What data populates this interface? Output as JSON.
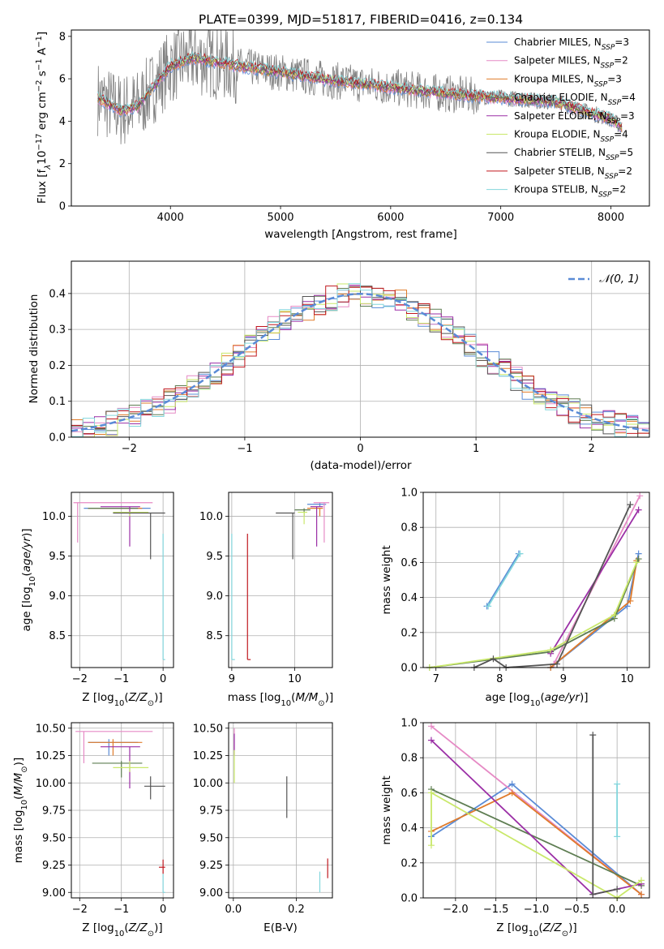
{
  "colors": {
    "chabrier_miles": "#5a8bd6",
    "salpeter_miles": "#e68ac5",
    "kroupa_miles": "#e07b2a",
    "chabrier_elodie": "#5e7d52",
    "salpeter_elodie": "#9b2fa6",
    "kroupa_elodie": "#c9e86a",
    "chabrier_stelib": "#555555",
    "salpeter_stelib": "#c0191f",
    "kroupa_stelib": "#82d6dc",
    "data": "#808080",
    "gauss": "#5a8bd6"
  },
  "chart_data": [
    {
      "type": "line",
      "id": "spectrum",
      "title": "PLATE=0399, MJD=51817, FIBERID=0416, z=0.134",
      "xlabel": "wavelength [Angstrom, rest frame]",
      "ylabel_text": "Flux [f",
      "xlim": [
        3100,
        8350
      ],
      "ylim": [
        0,
        8.3
      ],
      "xticks": [
        "4000",
        "5000",
        "6000",
        "7000",
        "8000"
      ],
      "yticks": [
        "0",
        "2",
        "4",
        "6",
        "8"
      ],
      "legend_position": "upper-right",
      "legend": [
        {
          "lib": "Chabrier MILES, N",
          "n": "=3",
          "color_key": "chabrier_miles"
        },
        {
          "lib": "Salpeter MILES, N",
          "n": "=2",
          "color_key": "salpeter_miles"
        },
        {
          "lib": "Kroupa MILES, N",
          "n": "=3",
          "color_key": "kroupa_miles"
        },
        {
          "lib": "Chabrier ELODIE, N",
          "n": "=4",
          "color_key": "chabrier_elodie"
        },
        {
          "lib": "Salpeter ELODIE, N",
          "n": "=3",
          "color_key": "salpeter_elodie"
        },
        {
          "lib": "Kroupa ELODIE, N",
          "n": "=4",
          "color_key": "kroupa_elodie"
        },
        {
          "lib": "Chabrier STELIB, N",
          "n": "=5",
          "color_key": "chabrier_stelib"
        },
        {
          "lib": "Salpeter STELIB, N",
          "n": "=2",
          "color_key": "salpeter_stelib"
        },
        {
          "lib": "Kroupa STELIB, N",
          "n": "=2",
          "color_key": "kroupa_stelib"
        }
      ],
      "continuum": {
        "x": [
          3340,
          3550,
          3700,
          4000,
          4200,
          4500,
          5000,
          5500,
          6000,
          6500,
          7000,
          7500,
          8000,
          8100
        ],
        "y": [
          5.1,
          4.5,
          4.7,
          6.6,
          7.0,
          6.7,
          6.3,
          5.9,
          5.6,
          5.3,
          5.1,
          4.9,
          4.1,
          3.7
        ]
      }
    },
    {
      "type": "line",
      "id": "residuals",
      "xlabel": "(data-model)/error",
      "ylabel": "Normed distribution",
      "xlim": [
        -2.5,
        2.5
      ],
      "ylim": [
        0,
        0.49
      ],
      "xticks": [
        -2,
        -1,
        0,
        1,
        2
      ],
      "yticks": [
        0.0,
        0.1,
        0.2,
        0.3,
        0.4
      ],
      "xtick_labels": [
        "−2",
        "−1",
        "0",
        "1",
        "2"
      ],
      "ytick_labels": [
        "0.0",
        "0.1",
        "0.2",
        "0.3",
        "0.4"
      ],
      "grid": true,
      "legend_label": "𝒩(0, 1)",
      "legend_position": "upper-right"
    },
    {
      "type": "scatter",
      "id": "age-vs-Z",
      "xlabel_text": "Z [log",
      "ylabel_text": "age  [log",
      "xlim": [
        -2.2,
        0.25
      ],
      "ylim": [
        8.1,
        10.3
      ],
      "xticks": [
        -2,
        -1,
        0
      ],
      "yticks": [
        8.5,
        9.0,
        9.5,
        10.0
      ],
      "xtick_labels": [
        "−2",
        "−1",
        "0"
      ],
      "ytick_labels": [
        "8.5",
        "9.0",
        "9.5",
        "10.0"
      ],
      "points": [
        {
          "x": -1.3,
          "y": 10.1,
          "xl": -1.9,
          "xh": -0.3,
          "yl": 10.1,
          "yh": 10.1,
          "c": "chabrier_miles"
        },
        {
          "x": -2.05,
          "y": 10.17,
          "xl": -2.15,
          "xh": -0.25,
          "yl": 9.67,
          "yh": 10.17,
          "c": "salpeter_miles"
        },
        {
          "x": -1.2,
          "y": 10.1,
          "xl": -1.8,
          "xh": -0.5,
          "yl": 10.1,
          "yh": 10.1,
          "c": "kroupa_miles"
        },
        {
          "x": -1.3,
          "y": 10.1,
          "xl": -1.8,
          "xh": -0.6,
          "yl": 10.1,
          "yh": 10.1,
          "c": "chabrier_elodie"
        },
        {
          "x": -0.8,
          "y": 10.12,
          "xl": -1.5,
          "xh": -0.55,
          "yl": 9.62,
          "yh": 10.12,
          "c": "salpeter_elodie"
        },
        {
          "x": -0.8,
          "y": 10.05,
          "xl": -1.2,
          "xh": -0.35,
          "yl": 10.0,
          "yh": 10.05,
          "c": "kroupa_elodie"
        },
        {
          "x": -0.3,
          "y": 10.04,
          "xl": -1.2,
          "xh": 0.05,
          "yl": 9.46,
          "yh": 10.04,
          "c": "chabrier_stelib"
        },
        {
          "x": 0.0,
          "y": 8.2,
          "xl": 0.0,
          "xh": 0.05,
          "yl": 8.2,
          "yh": 9.78,
          "c": "kroupa_stelib"
        }
      ]
    },
    {
      "type": "scatter",
      "id": "age-vs-mass",
      "xlabel_text": "mass [log",
      "xlim": [
        8.95,
        10.6
      ],
      "ylim": [
        8.1,
        10.3
      ],
      "xticks": [
        9,
        10
      ],
      "yticks": [
        8.5,
        9.0,
        9.5,
        10.0
      ],
      "xtick_labels": [
        "9",
        "10"
      ],
      "ytick_labels": [
        "8.5",
        "9.0",
        "9.5",
        "10.0"
      ],
      "points": [
        {
          "x": 10.4,
          "y": 10.15,
          "xl": 10.2,
          "xh": 10.5,
          "yl": 10.12,
          "yh": 10.17,
          "c": "chabrier_miles"
        },
        {
          "x": 10.47,
          "y": 10.17,
          "xl": 10.3,
          "xh": 10.55,
          "yl": 9.67,
          "yh": 10.17,
          "c": "salpeter_miles"
        },
        {
          "x": 10.4,
          "y": 10.1,
          "xl": 10.2,
          "xh": 10.45,
          "yl": 10.0,
          "yh": 10.1,
          "c": "kroupa_miles"
        },
        {
          "x": 10.15,
          "y": 10.08,
          "xl": 10.0,
          "xh": 10.25,
          "yl": 10.0,
          "yh": 10.1,
          "c": "chabrier_elodie"
        },
        {
          "x": 10.35,
          "y": 10.12,
          "xl": 10.25,
          "xh": 10.45,
          "yl": 9.62,
          "yh": 10.12,
          "c": "salpeter_elodie"
        },
        {
          "x": 10.15,
          "y": 10.05,
          "xl": 10.05,
          "xh": 10.2,
          "yl": 9.9,
          "yh": 10.05,
          "c": "kroupa_elodie"
        },
        {
          "x": 9.97,
          "y": 10.04,
          "xl": 9.7,
          "xh": 10.0,
          "yl": 9.46,
          "yh": 10.04,
          "c": "chabrier_stelib"
        },
        {
          "x": 9.25,
          "y": 8.2,
          "xl": 9.25,
          "xh": 9.3,
          "yl": 8.2,
          "yh": 9.78,
          "c": "salpeter_stelib"
        },
        {
          "x": 9.0,
          "y": 8.2,
          "xl": 9.0,
          "xh": 9.05,
          "yl": 8.2,
          "yh": 9.78,
          "c": "kroupa_stelib"
        }
      ]
    },
    {
      "type": "line",
      "id": "mass-weight-vs-age",
      "xlabel_text": "age  [log",
      "ylabel": "mass weight",
      "xlim": [
        6.8,
        10.35
      ],
      "ylim": [
        0,
        1.0
      ],
      "xticks": [
        7,
        8,
        9,
        10
      ],
      "yticks": [
        0.0,
        0.2,
        0.4,
        0.6,
        0.8,
        1.0
      ],
      "xtick_labels": [
        "7",
        "8",
        "9",
        "10"
      ],
      "ytick_labels": [
        "0.0",
        "0.2",
        "0.4",
        "0.6",
        "0.8",
        "1.0"
      ],
      "series": [
        {
          "c": "chabrier_miles",
          "x": [
            7.8,
            8.3
          ],
          "y": [
            0.35,
            0.65
          ]
        },
        {
          "c": "kroupa_stelib",
          "x": [
            7.82,
            8.32
          ],
          "y": [
            0.35,
            0.65
          ]
        },
        {
          "c": "chabrier_miles",
          "x": [
            8.8,
            10.0,
            10.18
          ],
          "y": [
            0.0,
            0.35,
            0.65
          ]
        },
        {
          "c": "salpeter_miles",
          "x": [
            8.85,
            10.2
          ],
          "y": [
            0.02,
            0.98
          ]
        },
        {
          "c": "kroupa_miles",
          "x": [
            8.8,
            10.05,
            10.15
          ],
          "y": [
            0.0,
            0.38,
            0.61
          ]
        },
        {
          "c": "chabrier_elodie",
          "x": [
            6.9,
            8.8,
            9.8,
            10.18
          ],
          "y": [
            0.0,
            0.09,
            0.28,
            0.62
          ]
        },
        {
          "c": "salpeter_elodie",
          "x": [
            8.8,
            10.18
          ],
          "y": [
            0.08,
            0.9
          ]
        },
        {
          "c": "kroupa_elodie",
          "x": [
            6.9,
            8.8,
            9.8,
            10.15
          ],
          "y": [
            0.0,
            0.1,
            0.3,
            0.6
          ]
        },
        {
          "c": "chabrier_stelib",
          "x": [
            7.6,
            7.9,
            8.1,
            8.9,
            10.05
          ],
          "y": [
            0.0,
            0.05,
            0.0,
            0.02,
            0.93
          ]
        }
      ]
    },
    {
      "type": "scatter",
      "id": "mass-vs-Z",
      "xlabel_text": "Z [log",
      "ylabel_text": "mass [log",
      "xlim": [
        -2.2,
        0.25
      ],
      "ylim": [
        8.95,
        10.55
      ],
      "xticks": [
        -2,
        -1,
        0
      ],
      "yticks": [
        9.0,
        9.25,
        9.5,
        9.75,
        10.0,
        10.25,
        10.5
      ],
      "xtick_labels": [
        "−2",
        "−1",
        "0"
      ],
      "ytick_labels": [
        "9.00",
        "9.25",
        "9.50",
        "9.75",
        "10.00",
        "10.25",
        "10.50"
      ],
      "points": [
        {
          "x": -1.3,
          "y": 10.37,
          "xl": -1.8,
          "xh": -0.6,
          "yl": 10.25,
          "yh": 10.4,
          "c": "chabrier_miles"
        },
        {
          "x": -1.9,
          "y": 10.47,
          "xl": -2.1,
          "xh": -0.25,
          "yl": 10.18,
          "yh": 10.47,
          "c": "salpeter_miles"
        },
        {
          "x": -1.2,
          "y": 10.37,
          "xl": -1.8,
          "xh": -0.5,
          "yl": 10.25,
          "yh": 10.4,
          "c": "kroupa_miles"
        },
        {
          "x": -1.0,
          "y": 10.18,
          "xl": -1.7,
          "xh": -0.5,
          "yl": 10.05,
          "yh": 10.2,
          "c": "chabrier_elodie"
        },
        {
          "x": -0.8,
          "y": 10.33,
          "xl": -1.5,
          "xh": -0.55,
          "yl": 9.95,
          "yh": 10.33,
          "c": "salpeter_elodie"
        },
        {
          "x": -0.8,
          "y": 10.14,
          "xl": -1.2,
          "xh": -0.35,
          "yl": 10.1,
          "yh": 10.2,
          "c": "kroupa_elodie"
        },
        {
          "x": -0.3,
          "y": 9.97,
          "xl": -0.45,
          "xh": 0.05,
          "yl": 9.85,
          "yh": 10.06,
          "c": "chabrier_stelib"
        },
        {
          "x": 0.0,
          "y": 9.23,
          "xl": -0.1,
          "xh": 0.05,
          "yl": 9.17,
          "yh": 9.3,
          "c": "salpeter_stelib"
        },
        {
          "x": 0.0,
          "y": 9.0,
          "xl": 0.0,
          "xh": 0.05,
          "yl": 9.0,
          "yh": 9.17,
          "c": "kroupa_stelib"
        }
      ]
    },
    {
      "type": "scatter",
      "id": "mass-vs-ebv",
      "xlabel": "E(B-V)",
      "xlim": [
        -0.015,
        0.315
      ],
      "ylim": [
        8.95,
        10.55
      ],
      "xticks": [
        0.0,
        0.2
      ],
      "yticks": [
        9.0,
        9.25,
        9.5,
        9.75,
        10.0,
        10.25,
        10.5
      ],
      "xtick_labels": [
        "0.0",
        "0.2"
      ],
      "ytick_labels": [
        "9.00",
        "9.25",
        "9.50",
        "9.75",
        "10.00",
        "10.25",
        "10.50"
      ],
      "points": [
        {
          "x": 0.003,
          "y": 10.47,
          "xl": 0.003,
          "xh": 0.003,
          "yl": 10.3,
          "yh": 10.5,
          "c": "salpeter_miles"
        },
        {
          "x": 0.003,
          "y": 10.37,
          "xl": 0.003,
          "xh": 0.003,
          "yl": 10.25,
          "yh": 10.45,
          "c": "salpeter_elodie"
        },
        {
          "x": 0.003,
          "y": 10.15,
          "xl": 0.003,
          "xh": 0.003,
          "yl": 10.0,
          "yh": 10.3,
          "c": "kroupa_elodie"
        },
        {
          "x": 0.17,
          "y": 9.87,
          "xl": 0.17,
          "xh": 0.17,
          "yl": 9.68,
          "yh": 10.06,
          "c": "chabrier_stelib"
        },
        {
          "x": 0.3,
          "y": 9.22,
          "xl": 0.3,
          "xh": 0.3,
          "yl": 9.13,
          "yh": 9.31,
          "c": "salpeter_stelib"
        },
        {
          "x": 0.275,
          "y": 9.1,
          "xl": 0.275,
          "xh": 0.275,
          "yl": 9.0,
          "yh": 9.19,
          "c": "kroupa_stelib"
        }
      ]
    },
    {
      "type": "line",
      "id": "mass-weight-vs-Z",
      "xlabel_text": "Z [log",
      "ylabel": "mass weight",
      "xlim": [
        -2.4,
        0.4
      ],
      "ylim": [
        0,
        1.0
      ],
      "xticks": [
        -2.0,
        -1.5,
        -1.0,
        -0.5,
        0.0
      ],
      "yticks": [
        0.0,
        0.2,
        0.4,
        0.6,
        0.8,
        1.0
      ],
      "xtick_labels": [
        "−2.0",
        "−1.5",
        "−1.0",
        "−0.5",
        "0.0"
      ],
      "ytick_labels": [
        "0.0",
        "0.2",
        "0.4",
        "0.6",
        "0.8",
        "1.0"
      ],
      "series": [
        {
          "c": "chabrier_miles",
          "x": [
            -2.3,
            -1.3,
            0.3
          ],
          "y": [
            0.35,
            0.65,
            0.02
          ]
        },
        {
          "c": "salpeter_miles",
          "x": [
            -2.3,
            0.3
          ],
          "y": [
            0.98,
            0.02
          ]
        },
        {
          "c": "kroupa_miles",
          "x": [
            -2.3,
            -1.3,
            0.3
          ],
          "y": [
            0.38,
            0.6,
            0.02
          ]
        },
        {
          "c": "chabrier_elodie",
          "x": [
            -2.3,
            0.3
          ],
          "y": [
            0.62,
            0.07
          ]
        },
        {
          "c": "salpeter_elodie",
          "x": [
            -2.3,
            -0.3,
            0.3
          ],
          "y": [
            0.9,
            0.02,
            0.08
          ]
        },
        {
          "c": "kroupa_elodie",
          "x": [
            -2.3,
            -2.3,
            0.0,
            0.3
          ],
          "y": [
            0.3,
            0.6,
            0.0,
            0.1
          ]
        },
        {
          "c": "chabrier_stelib",
          "x": [
            -0.3,
            -0.3,
            0.0
          ],
          "y": [
            0.93,
            0.02,
            0.05
          ]
        },
        {
          "c": "kroupa_stelib",
          "x": [
            0.0,
            0.0
          ],
          "y": [
            0.35,
            0.65
          ]
        }
      ]
    }
  ]
}
